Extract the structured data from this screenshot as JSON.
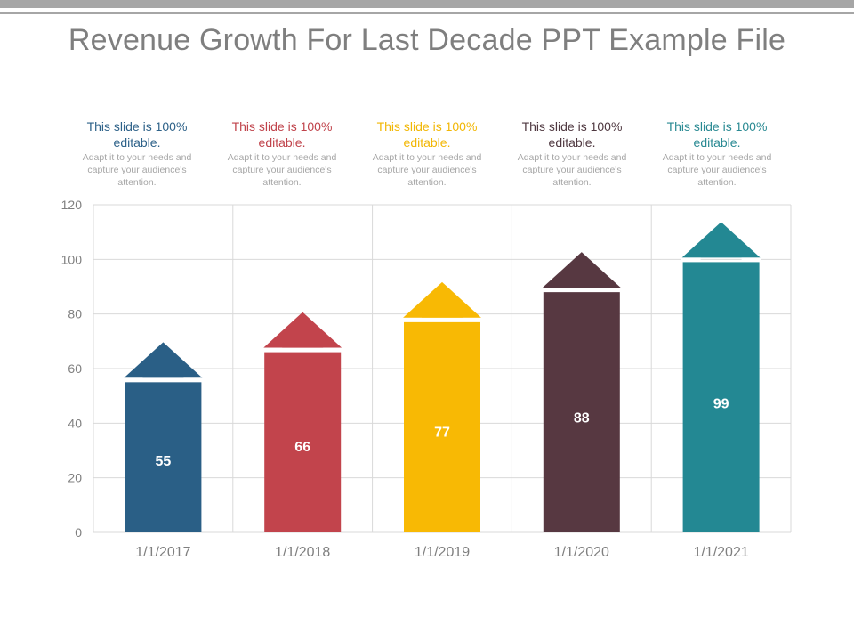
{
  "title": "Revenue Growth For Last Decade PPT Example File",
  "captions": [
    {
      "head": "This slide is 100% editable.",
      "body": "Adapt it to your needs and capture your audience's attention.",
      "color": "#2e6289"
    },
    {
      "head": "This slide is 100% editable.",
      "body": "Adapt it to your needs and capture your audience's attention.",
      "color": "#c0434b"
    },
    {
      "head": "This slide is 100% editable.",
      "body": "Adapt it to your needs and capture your audience's attention.",
      "color": "#f2b705"
    },
    {
      "head": "This slide is 100% editable.",
      "body": "Adapt it to your needs and capture your audience's attention.",
      "color": "#4f3840"
    },
    {
      "head": "This slide is 100% editable.",
      "body": "Adapt it to your needs and capture your audience's attention.",
      "color": "#2a8a93"
    }
  ],
  "chart_data": {
    "type": "bar",
    "title": "Revenue Growth For Last Decade PPT Example File",
    "categories": [
      "1/1/2017",
      "1/1/2018",
      "1/1/2019",
      "1/1/2020",
      "1/1/2021"
    ],
    "values": [
      55,
      66,
      77,
      88,
      99
    ],
    "data_labels": [
      "55",
      "66",
      "77",
      "88",
      "99"
    ],
    "colors": [
      "#2a5f86",
      "#c2444c",
      "#f8b904",
      "#573841",
      "#238893"
    ],
    "ylim": [
      0,
      120
    ],
    "yticks": [
      "0",
      "20",
      "40",
      "60",
      "80",
      "100",
      "120"
    ],
    "xlabel": "",
    "ylabel": "",
    "grid": true,
    "bar_style": "upward arrow"
  }
}
